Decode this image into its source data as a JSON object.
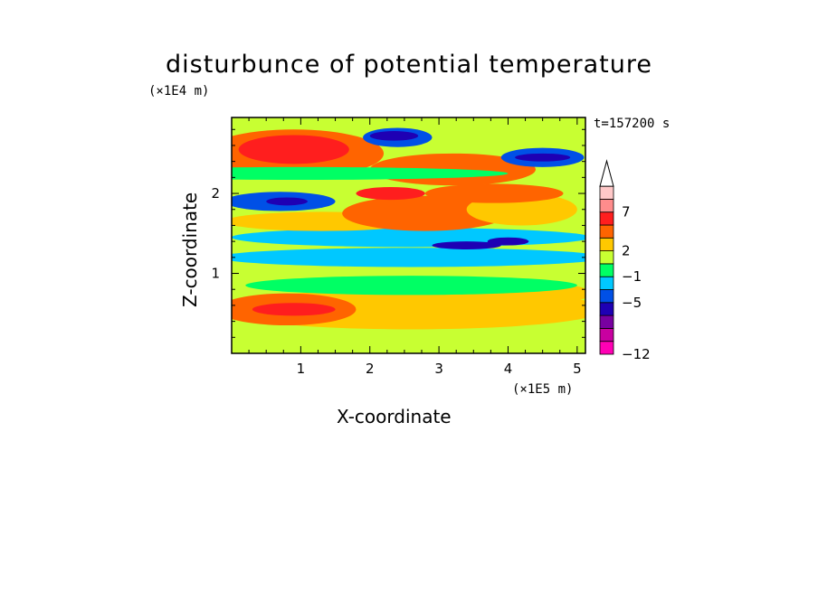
{
  "chart_data": {
    "type": "heatmap",
    "title": "disturbunce of potential temperature",
    "xlabel": "X-coordinate",
    "ylabel": "Z-coordinate",
    "x_unit": "(×1E5 m)",
    "y_unit": "(×1E4 m)",
    "time_label": "t=157200 s",
    "xlim": [
      0,
      5.12
    ],
    "ylim": [
      0,
      2.95
    ],
    "x_ticks": [
      "1",
      "2",
      "3",
      "4",
      "5"
    ],
    "y_ticks": [
      "1",
      "2"
    ],
    "colorbar": {
      "tick_labels": [
        "7",
        "2",
        "−1",
        "−5",
        "−12"
      ],
      "colors": [
        "#ff00b4",
        "#c800a0",
        "#7800a0",
        "#1e00b4",
        "#0050e6",
        "#00c8ff",
        "#00ff64",
        "#c8ff32",
        "#ffc800",
        "#ff6400",
        "#ff1e1e",
        "#ff8c8c",
        "#ffc8c8"
      ]
    }
  }
}
